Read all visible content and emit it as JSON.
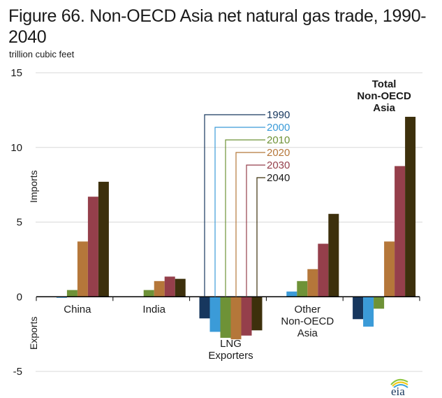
{
  "title": "Figure 66. Non-OECD Asia net natural gas trade, 1990-2040",
  "title_line1": "Figure 66. Non-OECD Asia net natural gas trade, 1990-",
  "title_line2": "2040",
  "units": "trillion  cubic feet",
  "side_labels": {
    "imports": "Imports",
    "exports": "Exports"
  },
  "logo": "eia",
  "chart_data": {
    "type": "bar",
    "title": "Figure 66. Non-OECD Asia net natural gas trade, 1990-2040",
    "xlabel": "",
    "ylabel": "trillion cubic feet",
    "ylim": [
      -5,
      15
    ],
    "yticks": [
      -5,
      0,
      5,
      10,
      15
    ],
    "grid": true,
    "legend_position": "center (leader lines to LNG Exporters bars)",
    "categories": [
      "China",
      "India",
      "LNG Exporters",
      "Other Non-OECD Asia",
      "Total Non-OECD Asia"
    ],
    "category_label_lines": [
      [
        "China"
      ],
      [
        "India"
      ],
      [
        "LNG",
        "Exporters"
      ],
      [
        "Other",
        "Non-OECD",
        "Asia"
      ],
      [
        "Total",
        "Non-OECD",
        "Asia"
      ]
    ],
    "series": [
      {
        "name": "1990",
        "color": "#17375e",
        "values": [
          0,
          0,
          -1.45,
          0,
          -1.5
        ]
      },
      {
        "name": "2000",
        "color": "#3b9bd8",
        "values": [
          -0.05,
          0,
          -2.35,
          0.35,
          -2.0
        ]
      },
      {
        "name": "2010",
        "color": "#6e9237",
        "values": [
          0.45,
          0.45,
          -2.75,
          1.05,
          -0.8
        ]
      },
      {
        "name": "2020",
        "color": "#b5773a",
        "values": [
          3.7,
          1.05,
          -2.85,
          1.85,
          3.7
        ]
      },
      {
        "name": "2030",
        "color": "#953f4b",
        "values": [
          6.7,
          1.35,
          -2.6,
          3.55,
          8.75
        ]
      },
      {
        "name": "2040",
        "color": "#3d300c",
        "values": [
          7.7,
          1.2,
          -2.25,
          5.55,
          12.05
        ]
      }
    ]
  }
}
